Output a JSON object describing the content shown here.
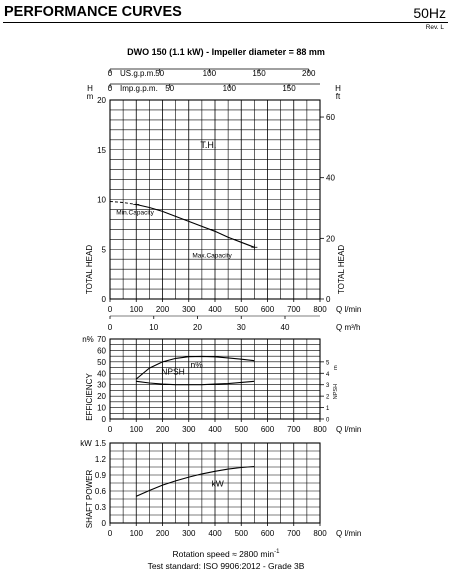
{
  "header": {
    "title": "PERFORMANCE CURVES",
    "frequency": "50Hz",
    "revision": "Rev. L"
  },
  "footer": {
    "rotation": "Rotation speed ≈ 2800 min",
    "rotation_sup": "-1",
    "standard": "Test standard: ISO 9906:2012 - Grade 3B"
  },
  "chart_data": [
    {
      "id": "head",
      "type": "line",
      "title": "DWO 150 (1.1 kW) - Impeller diameter = 88 mm",
      "x_axes": [
        {
          "label": "Q l/min",
          "ticks": [
            0,
            100,
            200,
            300,
            400,
            500,
            600,
            700,
            800
          ],
          "range": [
            0,
            800
          ]
        },
        {
          "label": "Q m³/h",
          "ticks": [
            0,
            10,
            20,
            30,
            40
          ]
        },
        {
          "label": "US.g.p.m.",
          "ticks": [
            0,
            50,
            100,
            150,
            200
          ]
        },
        {
          "label": "Imp.g.p.m.",
          "ticks": [
            0,
            50,
            100,
            150
          ]
        }
      ],
      "y_axes": [
        {
          "unit": "m",
          "letter": "H",
          "label": "TOTAL HEAD",
          "ticks": [
            0,
            5,
            10,
            15,
            20
          ],
          "range": [
            0,
            20
          ]
        },
        {
          "unit": "ft",
          "letter": "H",
          "label": "TOTAL HEAD",
          "ticks": [
            0,
            20,
            40,
            60
          ]
        }
      ],
      "grid": true,
      "series": [
        {
          "name": "T.H.",
          "x": [
            100,
            150,
            200,
            250,
            300,
            350,
            400,
            450,
            500,
            550
          ],
          "y": [
            9.5,
            9.2,
            8.8,
            8.3,
            7.8,
            7.3,
            6.8,
            6.2,
            5.7,
            5.2
          ]
        },
        {
          "x": [
            0,
            50,
            100
          ],
          "y": [
            9.8,
            9.7,
            9.5
          ],
          "style": "dashed"
        }
      ],
      "annotations": [
        {
          "text": "Min.Capacity",
          "x": 100,
          "y": 9.5
        },
        {
          "text": "Max.Capacity",
          "x": 550,
          "y": 5.2
        }
      ]
    },
    {
      "id": "efficiency",
      "type": "line",
      "x_axis": {
        "label": "Q l/min",
        "ticks": [
          0,
          100,
          200,
          300,
          400,
          500,
          600,
          700,
          800
        ],
        "range": [
          0,
          800
        ]
      },
      "y_axes": [
        {
          "unit": "n%",
          "label": "EFFICIENCY",
          "ticks": [
            0,
            10,
            20,
            30,
            40,
            50,
            60,
            70
          ],
          "range": [
            0,
            70
          ]
        },
        {
          "unit": "m",
          "label": "NPSH",
          "ticks": [
            0,
            1,
            2,
            3,
            4,
            5
          ],
          "range": [
            0,
            7
          ]
        }
      ],
      "grid": true,
      "series": [
        {
          "name": "n%",
          "x": [
            100,
            150,
            200,
            250,
            300,
            350,
            400,
            450,
            500,
            550
          ],
          "y": [
            35,
            44.5,
            50,
            53,
            54.5,
            54.8,
            54.4,
            53.5,
            52.3,
            51
          ]
        },
        {
          "name": "NPSH",
          "axis": 1,
          "x": [
            100,
            150,
            200,
            250,
            300,
            350,
            400,
            450,
            500,
            550
          ],
          "y": [
            3.3,
            3.15,
            3.05,
            3.0,
            3.0,
            3.0,
            3.05,
            3.1,
            3.2,
            3.3
          ]
        }
      ]
    },
    {
      "id": "power",
      "type": "line",
      "x_axis": {
        "label": "Q l/min",
        "ticks": [
          0,
          100,
          200,
          300,
          400,
          500,
          600,
          700,
          800
        ],
        "range": [
          0,
          800
        ]
      },
      "y_axis": {
        "unit": "kW",
        "label": "SHAFT POWER",
        "ticks": [
          0,
          0.3,
          0.6,
          0.9,
          1.2,
          1.5
        ],
        "range": [
          0,
          1.5
        ]
      },
      "grid": true,
      "series": [
        {
          "name": "kW",
          "x": [
            100,
            150,
            200,
            250,
            300,
            350,
            400,
            450,
            500,
            550
          ],
          "y": [
            0.5,
            0.61,
            0.71,
            0.79,
            0.86,
            0.92,
            0.97,
            1.01,
            1.04,
            1.06
          ]
        }
      ]
    }
  ]
}
